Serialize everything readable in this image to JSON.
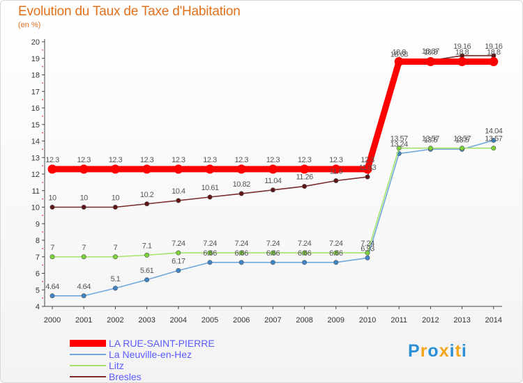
{
  "title": "Evolution du Taux de Taxe d'Habitation",
  "subtitle": "(en %)",
  "logo": {
    "letters": [
      {
        "ch": "P",
        "color": "#2a8fd6"
      },
      {
        "ch": "r",
        "color": "#f3a51c"
      },
      {
        "ch": "o",
        "color": "#2a8fd6"
      },
      {
        "ch": "x",
        "color": "#f3a51c"
      },
      {
        "ch": "i",
        "color": "#2a8fd6"
      },
      {
        "ch": "t",
        "color": "#f3a51c"
      },
      {
        "ch": "i",
        "color": "#2a8fd6"
      }
    ]
  },
  "chart_data": {
    "type": "line",
    "title": "Evolution du Taux de Taxe d'Habitation",
    "ylabel": "(en %)",
    "xlabel": "",
    "x": [
      "2000",
      "2001",
      "2002",
      "2003",
      "2004",
      "2005",
      "2006",
      "2007",
      "2008",
      "2009",
      "2010",
      "2011",
      "2012",
      "2013",
      "2014"
    ],
    "ylim": [
      4,
      20
    ],
    "yticks": [
      "4",
      "5",
      "6",
      "7",
      "8",
      "9",
      "10",
      "11",
      "12",
      "13",
      "14",
      "15",
      "16",
      "17",
      "18",
      "19",
      "20"
    ],
    "grid": false,
    "legend_position": "bottom-left",
    "series": [
      {
        "name": "LA RUE-SAINT-PIERRE",
        "color": "#ff0000",
        "marker": "#ff0000",
        "values": [
          12.3,
          12.3,
          12.3,
          12.3,
          12.3,
          12.3,
          12.3,
          12.3,
          12.3,
          12.3,
          12.3,
          18.8,
          18.8,
          18.8,
          18.8
        ],
        "labels": [
          "12.3",
          "12.3",
          "12.3",
          "12.3",
          "12.3",
          "12.3",
          "12.3",
          "12.3",
          "12.3",
          "12.3",
          "12.3",
          "18.8",
          "18.8",
          "18.8",
          "18.8"
        ]
      },
      {
        "name": "La Neuville-en-Hez",
        "color": "#6fa8dc",
        "marker": "#3d85c6",
        "values": [
          4.64,
          4.64,
          5.1,
          5.61,
          6.17,
          6.66,
          6.66,
          6.66,
          6.66,
          6.66,
          6.93,
          13.24,
          13.5,
          13.5,
          14.04
        ],
        "labels": [
          "4.64",
          "4.64",
          "5.1",
          "5.61",
          "6.17",
          "6.66",
          "6.66",
          "6.66",
          "6.66",
          "6.66",
          "6.93",
          "13.24",
          "13.5",
          "13.5",
          "14.04"
        ]
      },
      {
        "name": "Litz",
        "color": "#a6e36b",
        "marker": "#7dd33a",
        "values": [
          7,
          7,
          7,
          7.1,
          7.24,
          7.24,
          7.24,
          7.24,
          7.24,
          7.24,
          7.24,
          13.57,
          13.57,
          13.57,
          13.57
        ],
        "labels": [
          "7",
          "7",
          "7",
          "7.1",
          "7.24",
          "7.24",
          "7.24",
          "7.24",
          "7.24",
          "7.24",
          "7.24",
          "13.57",
          "13.57",
          "13.57",
          "13.57"
        ]
      },
      {
        "name": "Bresles",
        "color": "#7a2a2a",
        "marker": "#5e1515",
        "values": [
          10,
          10,
          10,
          10.2,
          10.4,
          10.61,
          10.82,
          11.04,
          11.26,
          11.6,
          11.83,
          18.68,
          18.87,
          19.16,
          19.16
        ],
        "labels": [
          "10",
          "10",
          "10",
          "10.2",
          "10.4",
          "10.61",
          "10.82",
          "11.04",
          "11.26",
          "11.6",
          "11.83",
          "18.68",
          "18.87",
          "19.16",
          "19.16"
        ]
      }
    ]
  }
}
